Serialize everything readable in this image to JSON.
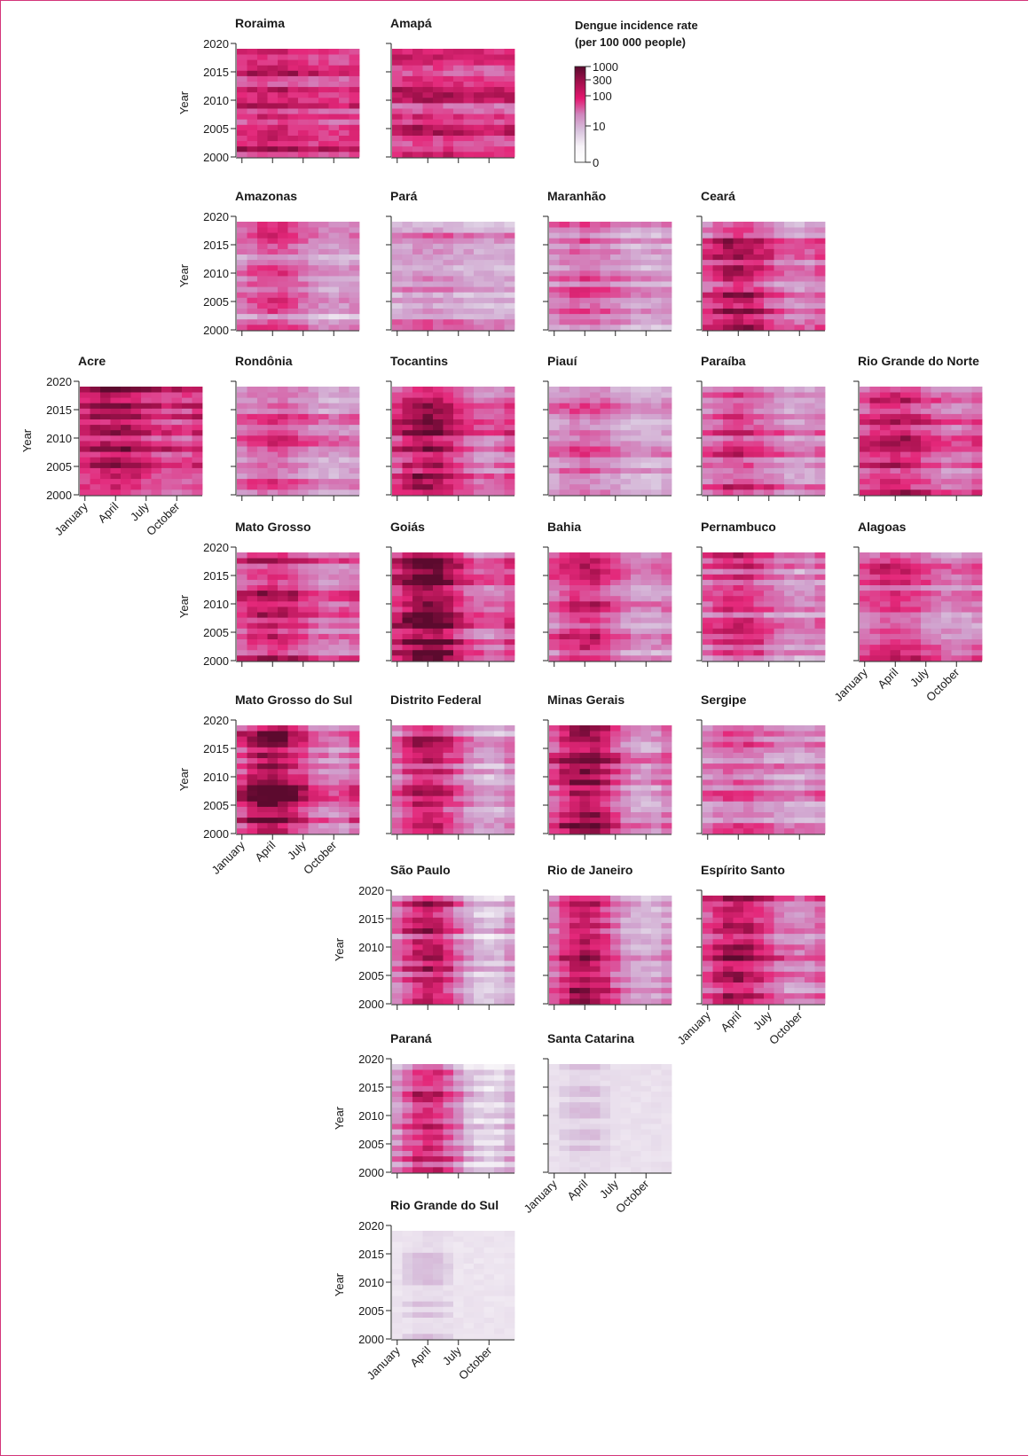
{
  "chart_data": {
    "type": "heatmap",
    "title": "",
    "color_scale": {
      "label_line1": "Dengue incidence rate",
      "label_line2": "(per 100 000 people)",
      "ticks": [
        "1000",
        "300",
        "100",
        "10",
        "0"
      ],
      "colors": [
        "#5a0a2e",
        "#a4104d",
        "#e4166f",
        "#cf86bd",
        "#d8c2dd",
        "#f7f3f8",
        "#ffffff"
      ]
    },
    "axis": {
      "ylabel": "Year",
      "yticks": [
        "2020",
        "2015",
        "2010",
        "2005",
        "2000"
      ],
      "xticks": [
        "January",
        "April",
        "July",
        "October"
      ],
      "ylim": [
        2000,
        2019
      ],
      "months": 12
    },
    "panels": [
      {
        "state": "Roraima",
        "level": 2.1,
        "early": 0.3,
        "y_axis": true,
        "x_labels": false
      },
      {
        "state": "Amapá",
        "level": 2.0,
        "early": 0.2,
        "y_axis": false,
        "x_labels": false
      },
      {
        "state": "Amazonas",
        "level": 1.3,
        "early": 0.8,
        "y_axis": true,
        "x_labels": false
      },
      {
        "state": "Pará",
        "level": 1.2,
        "early": 0.3,
        "y_axis": false,
        "x_labels": false
      },
      {
        "state": "Maranhão",
        "level": 1.3,
        "early": 0.6,
        "y_axis": false,
        "x_labels": false
      },
      {
        "state": "Ceará",
        "level": 1.8,
        "early": 1.0,
        "y_axis": false,
        "x_labels": false
      },
      {
        "state": "Acre",
        "level": 2.3,
        "early": 0.6,
        "y_axis": true,
        "x_labels": true
      },
      {
        "state": "Rondônia",
        "level": 1.6,
        "early": 0.6,
        "y_axis": false,
        "x_labels": false
      },
      {
        "state": "Tocantins",
        "level": 2.0,
        "early": 1.0,
        "y_axis": false,
        "x_labels": false
      },
      {
        "state": "Piauí",
        "level": 1.4,
        "early": 0.6,
        "y_axis": false,
        "x_labels": false
      },
      {
        "state": "Paraíba",
        "level": 1.7,
        "early": 0.7,
        "y_axis": false,
        "x_labels": false
      },
      {
        "state": "Rio Grande do Norte",
        "level": 1.9,
        "early": 0.7,
        "y_axis": false,
        "x_labels": false
      },
      {
        "state": "Mato Grosso",
        "level": 1.9,
        "early": 0.7,
        "y_axis": true,
        "x_labels": false
      },
      {
        "state": "Goiás",
        "level": 2.2,
        "early": 1.3,
        "y_axis": false,
        "x_labels": false
      },
      {
        "state": "Bahia",
        "level": 1.6,
        "early": 1.0,
        "y_axis": false,
        "x_labels": false
      },
      {
        "state": "Pernambuco",
        "level": 1.6,
        "early": 0.8,
        "y_axis": false,
        "x_labels": false
      },
      {
        "state": "Alagoas",
        "level": 1.7,
        "early": 0.7,
        "y_axis": false,
        "x_labels": true
      },
      {
        "state": "Mato Grosso do Sul",
        "level": 2.1,
        "early": 1.3,
        "y_axis": true,
        "x_labels": true
      },
      {
        "state": "Distrito Federal",
        "level": 1.6,
        "early": 1.3,
        "y_axis": false,
        "x_labels": false
      },
      {
        "state": "Minas Gerais",
        "level": 1.9,
        "early": 1.5,
        "y_axis": false,
        "x_labels": false
      },
      {
        "state": "Sergipe",
        "level": 1.5,
        "early": 0.5,
        "y_axis": false,
        "x_labels": false
      },
      {
        "state": "São Paulo",
        "level": 1.5,
        "early": 1.8,
        "y_axis": true,
        "x_labels": false
      },
      {
        "state": "Rio de Janeiro",
        "level": 1.7,
        "early": 1.6,
        "y_axis": false,
        "x_labels": false
      },
      {
        "state": "Espírito Santo",
        "level": 1.9,
        "early": 1.1,
        "y_axis": false,
        "x_labels": true
      },
      {
        "state": "Paraná",
        "level": 1.2,
        "early": 1.8,
        "y_axis": true,
        "x_labels": false
      },
      {
        "state": "Santa Catarina",
        "level": 0.2,
        "early": 1.5,
        "y_axis": false,
        "x_labels": true
      },
      {
        "state": "Rio Grande do Sul",
        "level": 0.15,
        "early": 1.6,
        "y_axis": true,
        "x_labels": true
      }
    ]
  }
}
